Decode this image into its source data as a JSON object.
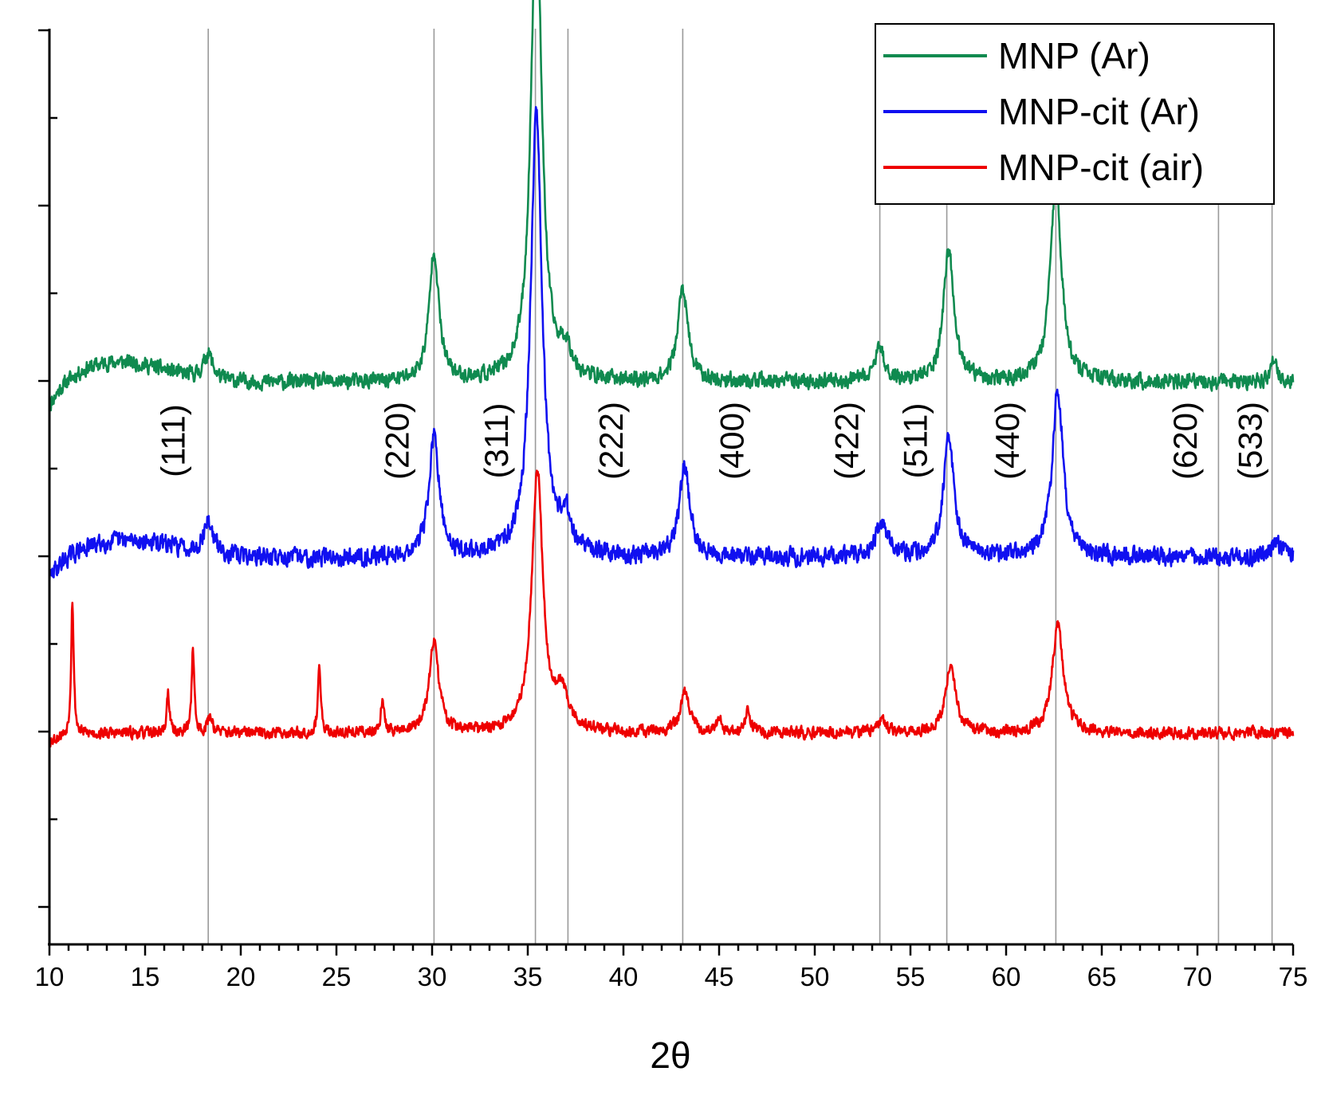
{
  "chart_data": {
    "type": "line",
    "title": "",
    "xlabel": "2θ",
    "ylabel": "",
    "xlim": [
      10,
      75
    ],
    "x_ticks": [
      "10",
      "15",
      "20",
      "25",
      "30",
      "35",
      "40",
      "45",
      "50",
      "55",
      "60",
      "65",
      "70",
      "75"
    ],
    "y_tick_count": 11,
    "reference_lines": [
      18.3,
      30.1,
      35.4,
      37.1,
      43.1,
      53.4,
      56.9,
      62.6,
      71.1,
      73.9
    ],
    "hkl_labels": [
      {
        "text": "(111)",
        "x": 16.6
      },
      {
        "text": "(220)",
        "x": 28.3
      },
      {
        "text": "(311)",
        "x": 33.5
      },
      {
        "text": "(222)",
        "x": 39.5
      },
      {
        "text": "(400)",
        "x": 45.8
      },
      {
        "text": "(422)",
        "x": 51.8
      },
      {
        "text": "(511)",
        "x": 55.4
      },
      {
        "text": "(440)",
        "x": 60.2
      },
      {
        "text": "(620)",
        "x": 69.5
      },
      {
        "text": "(533)",
        "x": 72.9
      }
    ],
    "series": [
      {
        "name": "MNP (Ar)",
        "color": "#0f8a4f",
        "baseline": 3,
        "noise": 0.06,
        "seed": 11,
        "hump": {
          "center": 13.5,
          "width": 3.5,
          "height": 0.12,
          "start": 10,
          "startDrop": 0.18
        },
        "peaks": [
          [
            18.3,
            0.15,
            0.28
          ],
          [
            30.1,
            0.75,
            0.3
          ],
          [
            35.45,
            2.75,
            0.34
          ],
          [
            37.0,
            0.15,
            0.35
          ],
          [
            43.1,
            0.53,
            0.32
          ],
          [
            53.4,
            0.18,
            0.35
          ],
          [
            57.0,
            0.75,
            0.33
          ],
          [
            62.6,
            1.15,
            0.35
          ],
          [
            74.0,
            0.12,
            0.2
          ]
        ]
      },
      {
        "name": "MNP-cit (Ar)",
        "color": "#1010f0",
        "baseline": 2,
        "noise": 0.07,
        "seed": 29,
        "hump": {
          "center": 14.0,
          "width": 3.8,
          "height": 0.1,
          "start": 10,
          "startDrop": 0.15
        },
        "peaks": [
          [
            18.3,
            0.18,
            0.3
          ],
          [
            30.1,
            0.68,
            0.32
          ],
          [
            35.45,
            2.55,
            0.36
          ],
          [
            37.0,
            0.18,
            0.35
          ],
          [
            43.2,
            0.52,
            0.32
          ],
          [
            53.5,
            0.2,
            0.38
          ],
          [
            57.0,
            0.7,
            0.33
          ],
          [
            62.7,
            0.95,
            0.35
          ],
          [
            74.1,
            0.1,
            0.3
          ]
        ]
      },
      {
        "name": "MNP-cit (air)",
        "color": "#ee0000",
        "baseline": 1,
        "noise": 0.045,
        "seed": 53,
        "hump": {
          "center": 30,
          "width": 1,
          "height": 0,
          "start": 10,
          "startDrop": 0.05
        },
        "peaks": [
          [
            11.2,
            0.78,
            0.08
          ],
          [
            16.2,
            0.24,
            0.08
          ],
          [
            17.5,
            0.5,
            0.08
          ],
          [
            18.4,
            0.1,
            0.15
          ],
          [
            24.1,
            0.4,
            0.08
          ],
          [
            27.4,
            0.16,
            0.12
          ],
          [
            30.1,
            0.52,
            0.3
          ],
          [
            35.5,
            1.5,
            0.35
          ],
          [
            36.8,
            0.2,
            0.4
          ],
          [
            43.2,
            0.22,
            0.3
          ],
          [
            45.0,
            0.07,
            0.15
          ],
          [
            46.5,
            0.13,
            0.15
          ],
          [
            53.5,
            0.08,
            0.25
          ],
          [
            57.1,
            0.38,
            0.32
          ],
          [
            62.7,
            0.62,
            0.35
          ]
        ]
      }
    ],
    "legend": {
      "placement": "top-right",
      "entries": [
        "MNP (Ar)",
        "MNP-cit (Ar)",
        "MNP-cit (air)"
      ]
    }
  }
}
